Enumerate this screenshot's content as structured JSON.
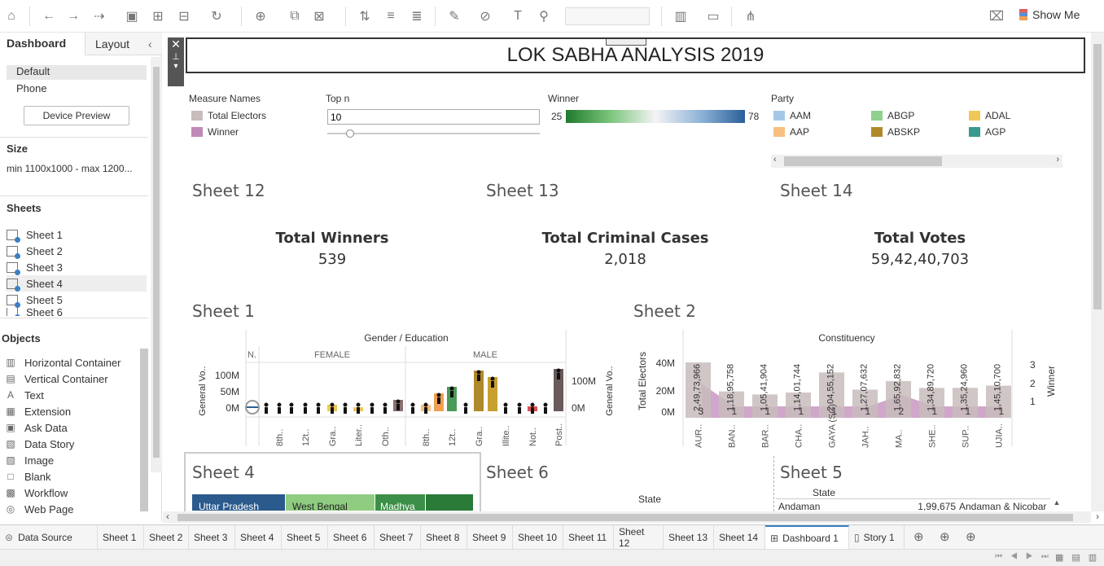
{
  "toolbar": {
    "show_me": "Show Me"
  },
  "left": {
    "tab_dashboard": "Dashboard",
    "tab_layout": "Layout",
    "devices": [
      "Default",
      "Phone"
    ],
    "device_preview": "Device Preview",
    "size_label": "Size",
    "size_value": "min 1100x1000 - max 1200...",
    "sheets_label": "Sheets",
    "sheets": [
      "Sheet 1",
      "Sheet 2",
      "Sheet 3",
      "Sheet 4",
      "Sheet 5",
      "Sheet 6"
    ],
    "objects_label": "Objects",
    "objects": [
      {
        "icon": "▥",
        "label": "Horizontal Container"
      },
      {
        "icon": "▤",
        "label": "Vertical Container"
      },
      {
        "icon": "A",
        "label": "Text"
      },
      {
        "icon": "▦",
        "label": "Extension"
      },
      {
        "icon": "▣",
        "label": "Ask Data"
      },
      {
        "icon": "▧",
        "label": "Data Story"
      },
      {
        "icon": "▨",
        "label": "Image"
      },
      {
        "icon": "□",
        "label": "Blank"
      },
      {
        "icon": "▩",
        "label": "Workflow"
      },
      {
        "icon": "◎",
        "label": "Web Page"
      }
    ]
  },
  "dashboard": {
    "title": "LOK SABHA ANALYSIS 2019",
    "measure_names": {
      "label": "Measure Names",
      "items": [
        {
          "name": "Total Electors",
          "color": "#c8bcbc"
        },
        {
          "name": "Winner",
          "color": "#c08ab8"
        }
      ]
    },
    "top_n": {
      "label": "Top n",
      "value": "10"
    },
    "winner_legend": {
      "label": "Winner",
      "min": "25",
      "max": "78"
    },
    "party": {
      "label": "Party",
      "items": [
        {
          "name": "AAM",
          "color": "#a6c8e8"
        },
        {
          "name": "ABGP",
          "color": "#8fd18f"
        },
        {
          "name": "ADAL",
          "color": "#f0c85a"
        },
        {
          "name": "AAP",
          "color": "#f9bf7f"
        },
        {
          "name": "ABSKP",
          "color": "#b08a2a"
        },
        {
          "name": "AGP",
          "color": "#3a9a8f"
        }
      ]
    },
    "sheet12": {
      "title": "Sheet 12",
      "label": "Total Winners",
      "value": "539"
    },
    "sheet13": {
      "title": "Sheet 13",
      "label": "Total Criminal Cases",
      "value": "2,018"
    },
    "sheet14": {
      "title": "Sheet 14",
      "label": "Total Votes",
      "value": "59,42,40,703"
    },
    "sheet1": {
      "title": "Sheet 1",
      "header": "Gender / Education",
      "groups": [
        "N.",
        "FEMALE",
        "MALE"
      ],
      "ylabel": "General Vo..",
      "yticks": [
        "100M",
        "50M",
        "0M"
      ],
      "ryticks": [
        "100M",
        "0M"
      ],
      "xlabels": [
        "8th..",
        "12t..",
        "Gra..",
        "Liter..",
        "Oth..",
        "8th..",
        "12t..",
        "Gra..",
        "Illite..",
        "Not..",
        "Post.."
      ]
    },
    "sheet2": {
      "title": "Sheet 2",
      "header": "Constituency",
      "ylabel": "Total Electors",
      "ylabel_r": "Winner",
      "yticks": [
        "40M",
        "20M",
        "0M"
      ],
      "ryticks": [
        "3",
        "2",
        "1"
      ],
      "xlabels": [
        "AUR..",
        "BAN..",
        "BAR..",
        "CHA..",
        "GAYA (SC)",
        "JAH..",
        "MA..",
        "SHE..",
        "SUP..",
        "UJIA.."
      ],
      "bar_labels": [
        "2,49,73,966",
        "1,18,95,758",
        "1,05,41,904",
        "1,14,01,744",
        "2,04,55,152",
        "1,27,07,632",
        "1,65,92,832",
        "1,34,89,720",
        "1,35,24,960",
        "1,45,10,700"
      ],
      "winner_labels": [
        "3",
        "1",
        "1",
        "1",
        "1",
        "1",
        "2",
        "1",
        "1",
        "1"
      ]
    },
    "sheet4": {
      "title": "Sheet 4",
      "cells": [
        "Uttar Pradesh",
        "West Bengal",
        "Madhya",
        ""
      ]
    },
    "sheet6": {
      "title": "Sheet 6",
      "col": "State"
    },
    "sheet5": {
      "title": "Sheet 5",
      "col": "State",
      "row": [
        "Andaman &..",
        "1,99,675",
        "Andaman & Nicobar"
      ]
    }
  },
  "chart_data": [
    {
      "type": "bar",
      "title": "Sheet 2",
      "xlabel": "Constituency",
      "ylabel": "Total Electors",
      "categories": [
        "AUR..",
        "BAN..",
        "BAR..",
        "CHA..",
        "GAYA (SC)",
        "JAH..",
        "MA..",
        "SHE..",
        "SUP..",
        "UJIA.."
      ],
      "series": [
        {
          "name": "Total Electors",
          "values": [
            24973966,
            11895758,
            10541904,
            11401744,
            20455152,
            12707632,
            16592832,
            13489720,
            13524960,
            14510700
          ]
        },
        {
          "name": "Winner",
          "values": [
            3,
            1,
            1,
            1,
            1,
            1,
            2,
            1,
            1,
            1
          ]
        }
      ],
      "ylim": [
        0,
        50000000
      ]
    }
  ],
  "tabs": [
    "Data Source",
    "Sheet 1",
    "Sheet 2",
    "Sheet 3",
    "Sheet 4",
    "Sheet 5",
    "Sheet 6",
    "Sheet 7",
    "Sheet 8",
    "Sheet 9",
    "Sheet 10",
    "Sheet 11",
    "Sheet 12",
    "Sheet 13",
    "Sheet 14",
    "Dashboard 1",
    "Story 1"
  ]
}
